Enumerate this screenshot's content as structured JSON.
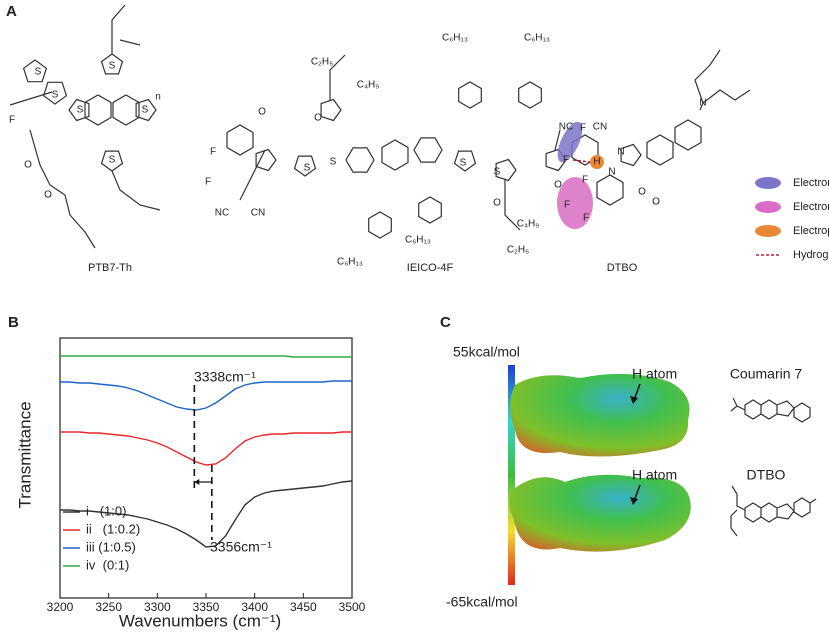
{
  "panel_a": {
    "label": "A",
    "molecules": [
      {
        "name": "PTB7-Th",
        "atoms": [
          "S",
          "S",
          "S",
          "S",
          "S",
          "S",
          "F",
          "O",
          "O",
          "n"
        ]
      },
      {
        "name": "IEICO-4F",
        "atoms": [
          "F",
          "F",
          "O",
          "NC",
          "CN",
          "O",
          "C₂H₅",
          "C₄H₉",
          "C₆H₁₃",
          "C₆H₁₃",
          "S",
          "S",
          "S",
          "S",
          "C₆H₁₃",
          "C₆H₁₃",
          "O",
          "C₄H₉",
          "C₂H₅",
          "NC",
          "CN",
          "O",
          "F",
          "F"
        ]
      },
      {
        "name": "DTBO",
        "atoms": [
          "N",
          "N",
          "H",
          "N",
          "O",
          "O",
          "F",
          "F",
          "F"
        ]
      }
    ],
    "legend": [
      "Electronegativity",
      "Electron pulling",
      "Electropositive",
      "Hydrogen bond"
    ]
  },
  "chart_data": {
    "type": "line",
    "panel_label": "B",
    "x_label": "Wavenumbers (cm⁻¹)",
    "y_label": "Transmittance",
    "x": [
      3200,
      3210,
      3220,
      3230,
      3240,
      3250,
      3260,
      3270,
      3280,
      3290,
      3300,
      3310,
      3320,
      3330,
      3340,
      3350,
      3360,
      3370,
      3380,
      3390,
      3400,
      3410,
      3420,
      3430,
      3440,
      3450,
      3460,
      3470,
      3480,
      3490,
      3500
    ],
    "series": [
      {
        "name": "i   (1:0)",
        "color": "#333333",
        "values": [
          88,
          88,
          87,
          87,
          86,
          85,
          84,
          83,
          81,
          79,
          76,
          73,
          69,
          64,
          58,
          51,
          52,
          62,
          78,
          93,
          101,
          105,
          107,
          108,
          109,
          110,
          111,
          112,
          114,
          116,
          117
        ]
      },
      {
        "name": "ii   (1:0.2)",
        "color": "#e8262b",
        "values": [
          166,
          166,
          166,
          165,
          165,
          164,
          163,
          162,
          160,
          158,
          155,
          151,
          146,
          141,
          136,
          133,
          134,
          140,
          149,
          157,
          161,
          163,
          164,
          164,
          165,
          165,
          165,
          165,
          165,
          166,
          166
        ]
      },
      {
        "name": "iii (1:0.5)",
        "color": "#1b64c8",
        "values": [
          216,
          216,
          215,
          215,
          214,
          213,
          212,
          210,
          207,
          203,
          199,
          195,
          191,
          189,
          188,
          190,
          195,
          202,
          209,
          213,
          215,
          216,
          216,
          216,
          216,
          216,
          216,
          216,
          217,
          217,
          217
        ]
      },
      {
        "name": "iv  (0:1)",
        "color": "#2ea84a",
        "values": [
          242,
          242,
          242,
          242,
          242,
          242,
          242,
          242,
          242,
          242,
          242,
          242,
          242,
          242,
          242,
          242,
          242,
          242,
          242,
          242,
          242,
          242,
          242,
          242,
          241,
          241,
          241,
          241,
          241,
          241,
          241
        ]
      }
    ],
    "xlim": [
      3200,
      3500
    ],
    "xticks": [
      3200,
      3250,
      3300,
      3350,
      3400,
      3450,
      3500
    ],
    "ylim": [
      0,
      260
    ],
    "annotations": [
      {
        "text": "3338cm⁻¹",
        "x": 3338
      },
      {
        "text": "3356cm⁻¹",
        "x": 3356
      }
    ]
  },
  "panel_c": {
    "label": "C",
    "scale_max": "55kcal/mol",
    "scale_min": "-65kcal/mol",
    "maps": [
      {
        "pointer": "H atom",
        "name": "Coumarin 7"
      },
      {
        "pointer": "H atom",
        "name": "DTBO"
      }
    ]
  }
}
